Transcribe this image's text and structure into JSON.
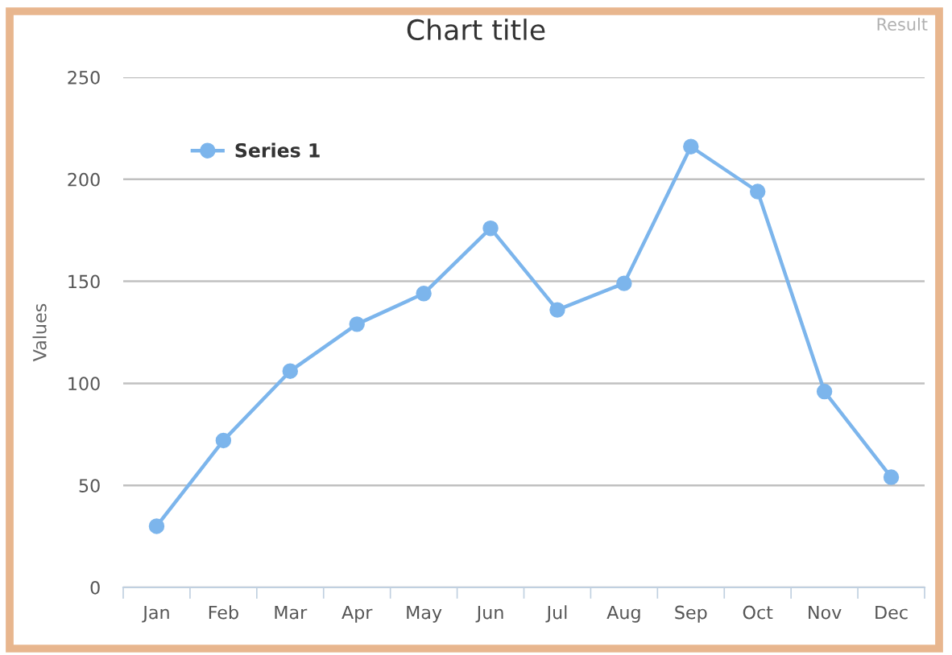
{
  "chart_data": {
    "type": "line",
    "title": "Chart title",
    "ylabel": "Values",
    "categories": [
      "Jan",
      "Feb",
      "Mar",
      "Apr",
      "May",
      "Jun",
      "Jul",
      "Aug",
      "Sep",
      "Oct",
      "Nov",
      "Dec"
    ],
    "series": [
      {
        "name": "Series 1",
        "color": "#7cb5ec",
        "values": [
          30,
          72,
          106,
          129,
          144,
          176,
          136,
          149,
          216,
          194,
          96,
          54
        ]
      }
    ],
    "ylim": [
      0,
      250
    ],
    "yticks": [
      0,
      50,
      100,
      150,
      200,
      250
    ],
    "grid": "y",
    "legend": "top left",
    "marker": "circle",
    "line_style": "solid",
    "annotations": [
      "Result"
    ]
  }
}
